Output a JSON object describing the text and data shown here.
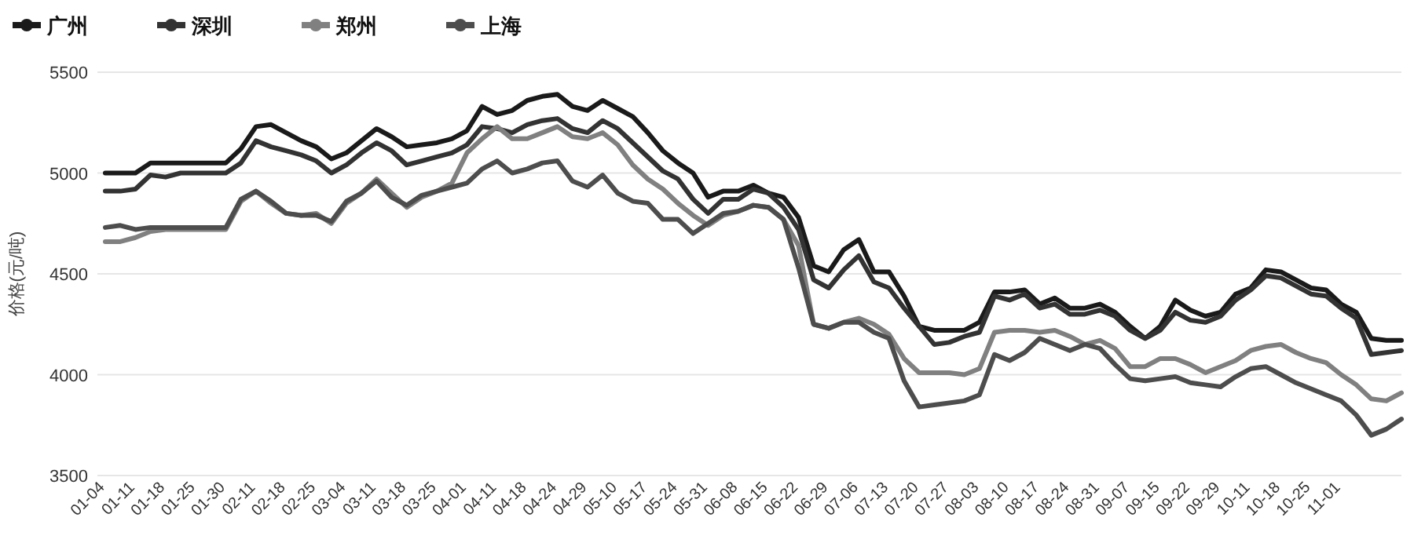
{
  "chart_data": {
    "type": "line",
    "ylabel": "价格(元/吨)",
    "ylim": [
      3500,
      5500
    ],
    "yticks": [
      3500,
      4000,
      4500,
      5000,
      5500
    ],
    "grid": "y",
    "legend": "top left",
    "line_style": "solid",
    "categories": [
      "01-04",
      null,
      "01-11",
      null,
      "01-18",
      null,
      "01-25",
      null,
      "01-30",
      null,
      "02-11",
      null,
      "02-18",
      null,
      "02-25",
      null,
      "03-04",
      null,
      "03-11",
      null,
      "03-18",
      null,
      "03-25",
      null,
      "04-01",
      null,
      "04-11",
      null,
      "04-18",
      null,
      "04-24",
      null,
      "04-29",
      null,
      "05-10",
      null,
      "05-17",
      null,
      "05-24",
      null,
      "05-31",
      null,
      "06-08",
      null,
      "06-15",
      null,
      "06-22",
      null,
      "06-29",
      null,
      "07-06",
      null,
      "07-13",
      null,
      "07-20",
      null,
      "07-27",
      null,
      "08-03",
      null,
      "08-10",
      null,
      "08-17",
      null,
      "08-24",
      null,
      "08-31",
      null,
      "09-07",
      null,
      "09-15",
      null,
      "09-22",
      null,
      "09-29",
      null,
      "10-11",
      null,
      "10-18",
      null,
      "10-25",
      null,
      "11-01",
      null,
      null,
      null,
      null
    ],
    "series": [
      {
        "name": "广州",
        "color": "#1a1a1a",
        "values": [
          5000,
          5000,
          5000,
          5050,
          5050,
          5050,
          5050,
          5050,
          5050,
          5120,
          5230,
          5240,
          5200,
          5160,
          5130,
          5070,
          5100,
          5160,
          5220,
          5180,
          5130,
          5140,
          5150,
          5170,
          5210,
          5330,
          5290,
          5310,
          5360,
          5380,
          5390,
          5330,
          5310,
          5360,
          5320,
          5280,
          5200,
          5110,
          5050,
          5000,
          4880,
          4910,
          4910,
          4940,
          4900,
          4880,
          4780,
          4540,
          4510,
          4620,
          4670,
          4510,
          4510,
          4390,
          4240,
          4220,
          4220,
          4220,
          4260,
          4410,
          4410,
          4420,
          4350,
          4380,
          4330,
          4330,
          4350,
          4310,
          4240,
          4180,
          4240,
          4370,
          4320,
          4290,
          4310,
          4400,
          4430,
          4520,
          4510,
          4470,
          4430,
          4420,
          4350,
          4310,
          4180,
          4170,
          4170
        ]
      },
      {
        "name": "深圳",
        "color": "#333333",
        "values": [
          4910,
          4910,
          4920,
          4990,
          4980,
          5000,
          5000,
          5000,
          5000,
          5050,
          5160,
          5130,
          5110,
          5090,
          5060,
          5000,
          5040,
          5100,
          5150,
          5110,
          5040,
          5060,
          5080,
          5100,
          5140,
          5230,
          5220,
          5200,
          5240,
          5260,
          5270,
          5220,
          5200,
          5260,
          5220,
          5150,
          5080,
          5010,
          4970,
          4870,
          4800,
          4870,
          4870,
          4920,
          4900,
          4830,
          4720,
          4470,
          4430,
          4520,
          4590,
          4460,
          4430,
          4330,
          4240,
          4150,
          4160,
          4190,
          4210,
          4390,
          4370,
          4400,
          4330,
          4350,
          4300,
          4300,
          4320,
          4290,
          4220,
          4180,
          4220,
          4310,
          4270,
          4260,
          4290,
          4370,
          4420,
          4490,
          4480,
          4440,
          4400,
          4390,
          4330,
          4280,
          4100,
          4110,
          4120
        ]
      },
      {
        "name": "郑州",
        "color": "#808080",
        "values": [
          4660,
          4660,
          4680,
          4710,
          4720,
          4720,
          4720,
          4720,
          4720,
          4860,
          4910,
          4850,
          4800,
          4790,
          4800,
          4750,
          4850,
          4900,
          4970,
          4900,
          4830,
          4880,
          4910,
          4950,
          5100,
          5170,
          5230,
          5170,
          5170,
          5200,
          5230,
          5180,
          5170,
          5200,
          5140,
          5040,
          4970,
          4920,
          4850,
          4790,
          4740,
          4790,
          4810,
          4840,
          4830,
          4770,
          4640,
          4250,
          4230,
          4260,
          4280,
          4250,
          4200,
          4080,
          4010,
          4010,
          4010,
          4000,
          4030,
          4210,
          4220,
          4220,
          4210,
          4220,
          4190,
          4150,
          4170,
          4130,
          4040,
          4040,
          4080,
          4080,
          4050,
          4010,
          4040,
          4070,
          4120,
          4140,
          4150,
          4110,
          4080,
          4060,
          4000,
          3950,
          3880,
          3870,
          3910
        ]
      },
      {
        "name": "上海",
        "color": "#4d4d4d",
        "values": [
          4730,
          4740,
          4720,
          4730,
          4730,
          4730,
          4730,
          4730,
          4730,
          4870,
          4910,
          4860,
          4800,
          4790,
          4790,
          4760,
          4860,
          4900,
          4960,
          4880,
          4840,
          4890,
          4910,
          4930,
          4950,
          5020,
          5060,
          5000,
          5020,
          5050,
          5060,
          4960,
          4930,
          4990,
          4900,
          4860,
          4850,
          4770,
          4770,
          4700,
          4750,
          4800,
          4810,
          4840,
          4830,
          4770,
          4530,
          4250,
          4230,
          4260,
          4260,
          4210,
          4180,
          3970,
          3840,
          3850,
          3860,
          3870,
          3900,
          4100,
          4070,
          4110,
          4180,
          4150,
          4120,
          4150,
          4130,
          4050,
          3980,
          3970,
          3980,
          3990,
          3960,
          3950,
          3940,
          3990,
          4030,
          4040,
          4000,
          3960,
          3930,
          3900,
          3870,
          3800,
          3700,
          3730,
          3780
        ]
      }
    ]
  }
}
